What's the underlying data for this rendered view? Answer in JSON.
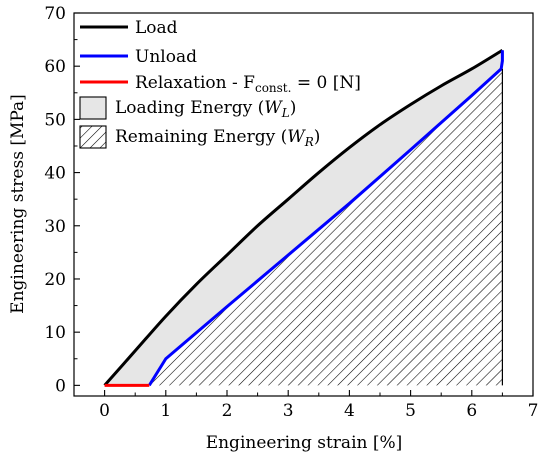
{
  "chart_data": {
    "type": "line",
    "title": "",
    "xlabel": "Engineering strain [%]",
    "ylabel": "Engineering stress [MPa]",
    "xlim": [
      -0.5,
      7
    ],
    "ylim": [
      -2,
      70
    ],
    "xticks": [
      "0",
      "1",
      "2",
      "3",
      "4",
      "5",
      "6",
      "7"
    ],
    "yticks": [
      "0",
      "10",
      "20",
      "30",
      "40",
      "50",
      "60",
      "70"
    ],
    "grid": false,
    "legend_position": "top-left",
    "series": [
      {
        "name": "Load",
        "color": "#000000",
        "x": [
          0,
          0.5,
          1,
          1.5,
          2,
          2.5,
          3,
          3.5,
          4,
          4.5,
          5,
          5.5,
          6,
          6.5
        ],
        "y": [
          0,
          6.5,
          13,
          19,
          24.5,
          30,
          35,
          40,
          44.7,
          49,
          52.8,
          56.3,
          59.5,
          63
        ]
      },
      {
        "name": "Unload",
        "color": "#0000ff",
        "x": [
          6.5,
          6.5,
          6.48,
          6,
          5,
          4,
          3,
          2,
          1,
          0.73
        ],
        "y": [
          63,
          61,
          59.5,
          54.5,
          44.3,
          34.2,
          24.5,
          14.8,
          5,
          0
        ]
      },
      {
        "name": "Relaxation - F",
        "name_sub": "const.",
        "name_tail": " = 0 [N]",
        "color": "#ff0000",
        "x": [
          0,
          0.73
        ],
        "y": [
          0,
          0
        ]
      }
    ],
    "areas": [
      {
        "name": "Loading Energy (W",
        "name_sub": "L",
        "name_tail": ")",
        "fill": "#e6e6e6",
        "pattern": "solid"
      },
      {
        "name": "Remaining Energy (W",
        "name_sub": "R",
        "name_tail": ")",
        "fill": "#ffffff",
        "pattern": "diagonal-hatch"
      }
    ]
  }
}
